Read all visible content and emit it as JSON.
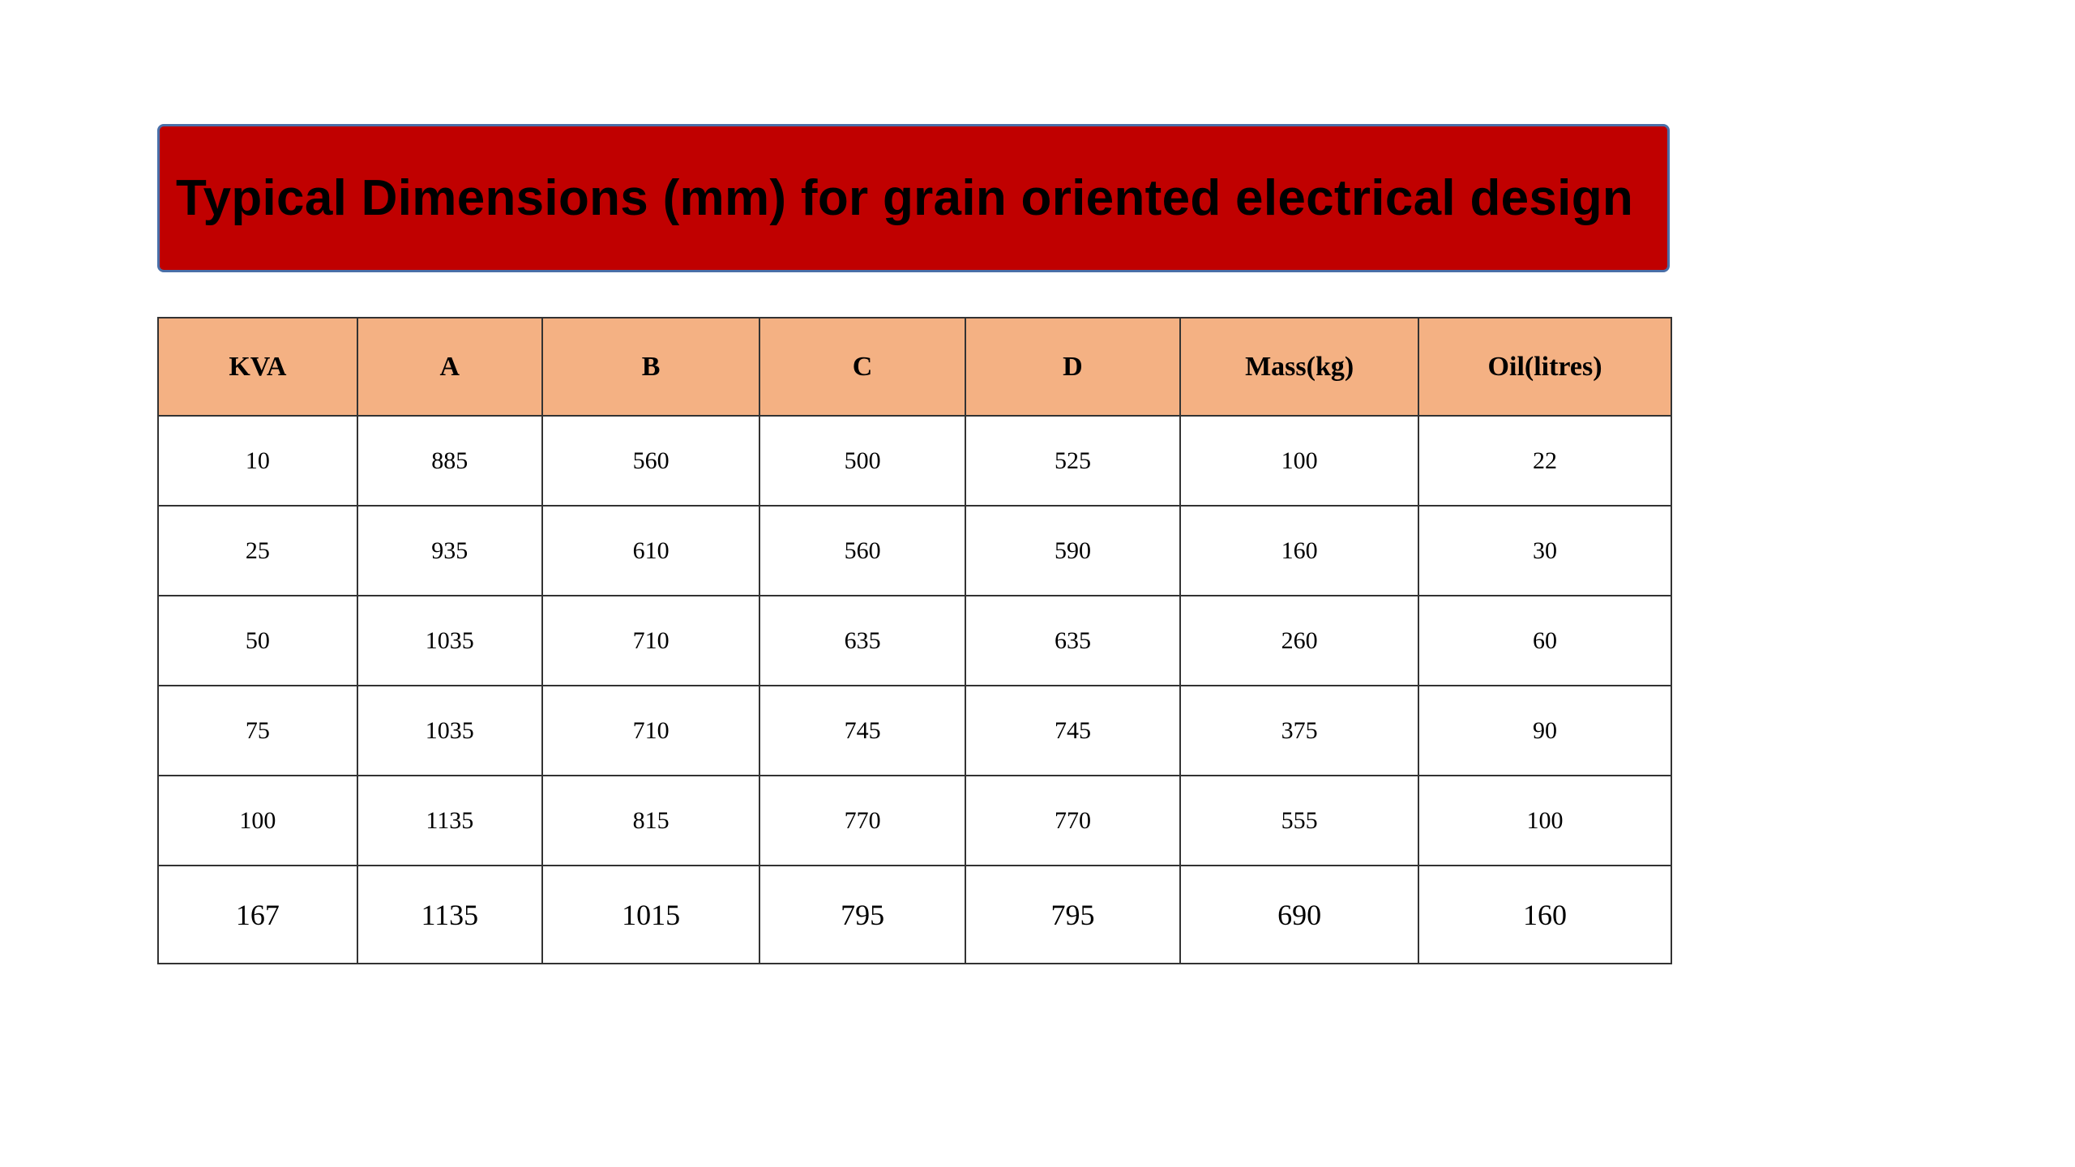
{
  "title": "Typical Dimensions (mm) for grain oriented electrical design",
  "colors": {
    "title_bg": "#c00000",
    "header_bg": "#f4b183"
  },
  "table": {
    "headers": [
      "KVA",
      "A",
      "B",
      "C",
      "D",
      "Mass(kg)",
      "Oil(litres)"
    ],
    "rows": [
      [
        "10",
        "885",
        "560",
        "500",
        "525",
        "100",
        "22"
      ],
      [
        "25",
        "935",
        "610",
        "560",
        "590",
        "160",
        "30"
      ],
      [
        "50",
        "1035",
        "710",
        "635",
        "635",
        "260",
        "60"
      ],
      [
        "75",
        "1035",
        "710",
        "745",
        "745",
        "375",
        "90"
      ],
      [
        "100",
        "1135",
        "815",
        "770",
        "770",
        "555",
        "100"
      ],
      [
        "167",
        "1135",
        "1015",
        "795",
        "795",
        "690",
        "160"
      ]
    ]
  }
}
